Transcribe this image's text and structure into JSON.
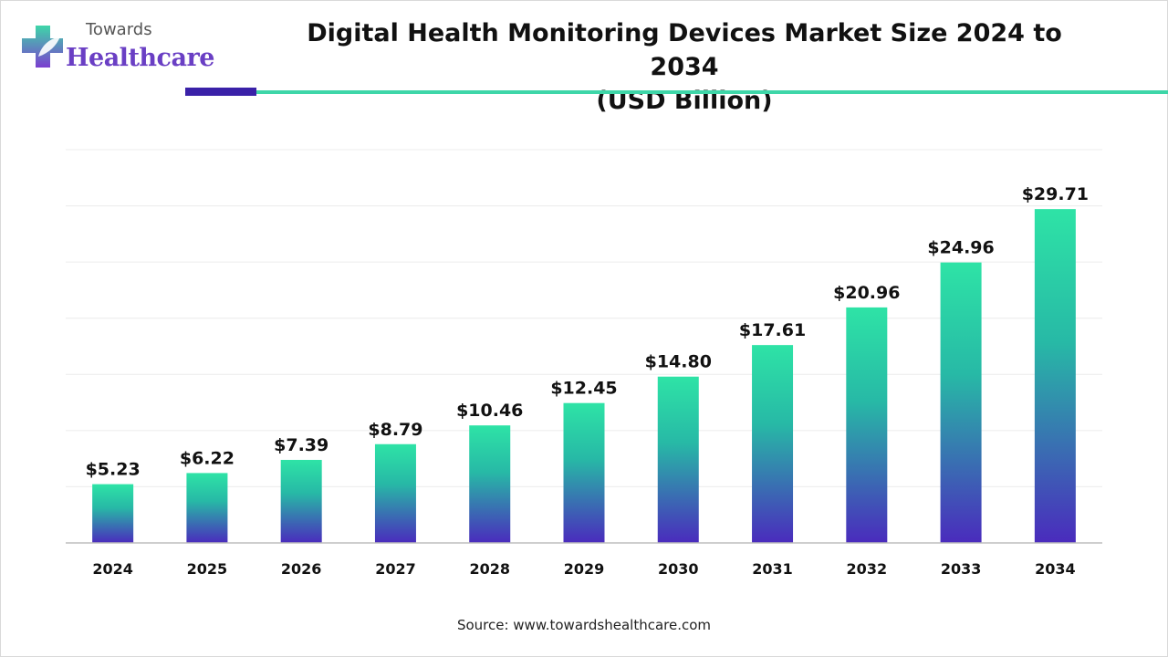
{
  "brand": {
    "top": "Towards",
    "main": "Healthcare"
  },
  "title_line1": "Digital Health Monitoring Devices Market Size 2024 to 2034",
  "title_line2": "(USD Billion)",
  "source": "Source: www.towardshealthcare.com",
  "colors": {
    "bar_top": "#2ee3a6",
    "bar_bottom": "#4a2bbd",
    "accent_dark": "#3a21a8",
    "accent_teal": "#3ed6a8",
    "brand": "#6a3fc4"
  },
  "chart_data": {
    "type": "bar",
    "title": "Digital Health Monitoring Devices Market Size 2024 to 2034 (USD Billion)",
    "categories": [
      "2024",
      "2025",
      "2026",
      "2027",
      "2028",
      "2029",
      "2030",
      "2031",
      "2032",
      "2033",
      "2034"
    ],
    "values": [
      5.23,
      6.22,
      7.39,
      8.79,
      10.46,
      12.45,
      14.8,
      17.61,
      20.96,
      24.96,
      29.71
    ],
    "labels": [
      "$5.23",
      "$6.22",
      "$7.39",
      "$8.79",
      "$10.46",
      "$12.45",
      "$14.80",
      "$17.61",
      "$20.96",
      "$24.96",
      "$29.71"
    ],
    "xlabel": "",
    "ylabel": "",
    "ylim": [
      0,
      35
    ],
    "grid": true,
    "legend": "none"
  }
}
